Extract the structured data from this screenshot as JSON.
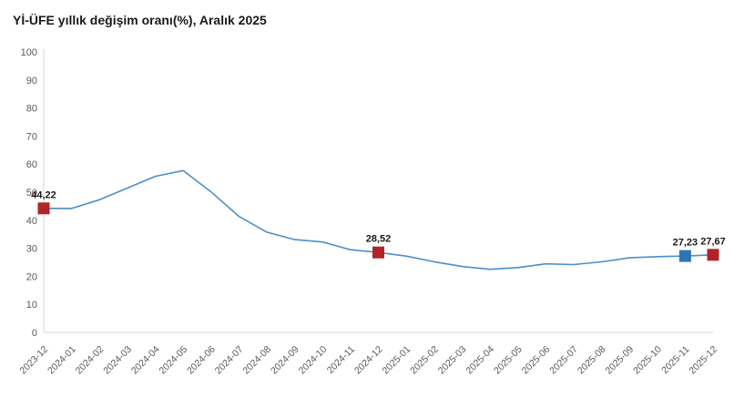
{
  "header": {
    "title": "Yİ-ÜFE yıllık değişim oranı(%), Aralık 2025"
  },
  "chart_data": {
    "type": "line",
    "title": "Yİ-ÜFE yıllık değişim oranı(%), Aralık 2025",
    "xlabel": "",
    "ylabel": "",
    "x": [
      "2023-12",
      "2024-01",
      "2024-02",
      "2024-03",
      "2024-04",
      "2024-05",
      "2024-06",
      "2024-07",
      "2024-08",
      "2024-09",
      "2024-10",
      "2024-11",
      "2024-12",
      "2025-01",
      "2025-02",
      "2025-03",
      "2025-04",
      "2025-05",
      "2025-06",
      "2025-07",
      "2025-08",
      "2025-09",
      "2025-10",
      "2025-11",
      "2025-12"
    ],
    "values": [
      44.22,
      44.2,
      47.29,
      51.47,
      55.66,
      57.68,
      50.09,
      41.37,
      35.75,
      33.09,
      32.24,
      29.47,
      28.52,
      27.2,
      25.21,
      23.5,
      22.5,
      23.13,
      24.45,
      24.19,
      25.16,
      26.59,
      27.0,
      27.23,
      27.67
    ],
    "ylim": [
      0,
      100
    ],
    "yticks": [
      0,
      10,
      20,
      30,
      40,
      50,
      60,
      70,
      80,
      90,
      100
    ],
    "grid": false,
    "legend": false,
    "line_color": "#4b8fc9",
    "axis_color": "#d6d6d6",
    "tick_label_color": "#595959",
    "data_label_color": "#1a1a1a",
    "highlighted_points": [
      {
        "x": "2023-12",
        "index": 0,
        "value": 44.22,
        "label": "44,22",
        "color": "#b02428",
        "shape": "square"
      },
      {
        "x": "2024-12",
        "index": 12,
        "value": 28.52,
        "label": "28,52",
        "color": "#b02428",
        "shape": "square"
      },
      {
        "x": "2025-11",
        "index": 23,
        "value": 27.23,
        "label": "27,23",
        "color": "#2e75b6",
        "shape": "square"
      },
      {
        "x": "2025-12",
        "index": 24,
        "value": 27.67,
        "label": "27,67",
        "color": "#b02428",
        "shape": "square"
      }
    ]
  }
}
